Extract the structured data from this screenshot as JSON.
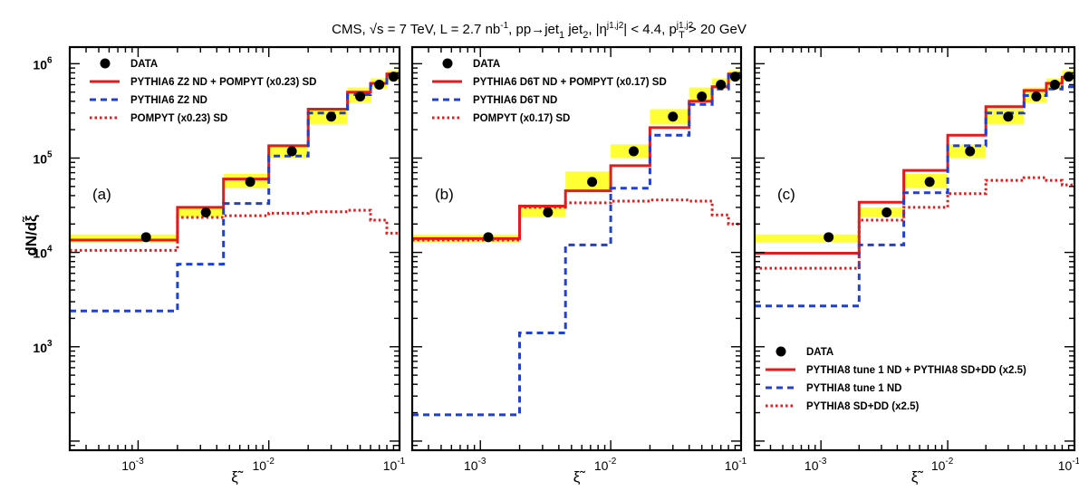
{
  "header": {
    "segments": [
      "CMS,",
      "√s = 7 TeV,",
      "L = 2.7 nb",
      "-1",
      ",",
      "pp→jet",
      "1",
      "jet",
      "2",
      ",",
      "|η",
      "j1,j2",
      "| < 4.4,",
      "p",
      "j1,j2",
      "T",
      "> 20 GeV"
    ]
  },
  "chart_data": [
    {
      "type": "step-line",
      "panel_label": "(a)",
      "xlabel": "ξ̃",
      "ylabel": "dN/dξ̃",
      "xscale": "log",
      "yscale": "log",
      "xlim": [
        0.0003,
        0.1
      ],
      "ylim": [
        80,
        1500000
      ],
      "x_ticks": [
        {
          "base": "10",
          "exp": "-3",
          "value": 0.001
        },
        {
          "base": "10",
          "exp": "-2",
          "value": 0.01
        },
        {
          "base": "10",
          "exp": "-1",
          "value": 0.1
        }
      ],
      "y_ticks": [
        {
          "base": "10",
          "exp": "3",
          "value": 1000
        },
        {
          "base": "10",
          "exp": "4",
          "value": 10000
        },
        {
          "base": "10",
          "exp": "5",
          "value": 100000
        },
        {
          "base": "10",
          "exp": "6",
          "value": 1000000
        }
      ],
      "show_y_labels": true,
      "legend_position": "top-left",
      "bin_edges": [
        0.0003,
        0.002,
        0.0045,
        0.01,
        0.02,
        0.04,
        0.06,
        0.08,
        0.1
      ],
      "data": {
        "name": "DATA",
        "x": [
          0.00115,
          0.0033,
          0.0072,
          0.015,
          0.03,
          0.05,
          0.07,
          0.09
        ],
        "y": [
          14500,
          26500,
          56000,
          118000,
          275000,
          450000,
          600000,
          730000
        ],
        "band_low": [
          12800,
          24000,
          48000,
          100000,
          230000,
          390000,
          540000,
          650000
        ],
        "band_high": [
          15500,
          30000,
          68000,
          140000,
          330000,
          560000,
          700000,
          850000
        ]
      },
      "series": [
        {
          "name": "PYTHIA6 Z2 ND + POMPYT (x0.23) SD",
          "style": "solid",
          "color": "#e41a1c",
          "values": [
            13500,
            30000,
            60000,
            135000,
            330000,
            500000,
            620000,
            780000
          ]
        },
        {
          "name": "PYTHIA6 Z2 ND",
          "style": "dashed",
          "color": "#1f3fd9",
          "values": [
            2400,
            7500,
            33000,
            105000,
            300000,
            470000,
            590000,
            760000
          ]
        },
        {
          "name": "POMPYT (x0.23) SD",
          "style": "dotted",
          "color": "#e41a1c",
          "values": [
            10500,
            23500,
            24500,
            26000,
            27000,
            28000,
            22000,
            16000
          ]
        }
      ],
      "band_color": "#ffff33"
    },
    {
      "type": "step-line",
      "panel_label": "(b)",
      "xlabel": "ξ̃",
      "ylabel": "",
      "xscale": "log",
      "yscale": "log",
      "xlim": [
        0.0003,
        0.1
      ],
      "ylim": [
        80,
        1500000
      ],
      "x_ticks": [
        {
          "base": "10",
          "exp": "-3",
          "value": 0.001
        },
        {
          "base": "10",
          "exp": "-2",
          "value": 0.01
        },
        {
          "base": "10",
          "exp": "-1",
          "value": 0.1
        }
      ],
      "y_ticks": [
        {
          "base": "10",
          "exp": "3",
          "value": 1000
        },
        {
          "base": "10",
          "exp": "4",
          "value": 10000
        },
        {
          "base": "10",
          "exp": "5",
          "value": 100000
        },
        {
          "base": "10",
          "exp": "6",
          "value": 1000000
        }
      ],
      "show_y_labels": false,
      "legend_position": "top-left",
      "bin_edges": [
        0.0003,
        0.002,
        0.0045,
        0.01,
        0.02,
        0.04,
        0.06,
        0.08,
        0.1
      ],
      "data": {
        "name": "DATA",
        "x": [
          0.00115,
          0.0033,
          0.0072,
          0.015,
          0.03,
          0.05,
          0.07,
          0.09
        ],
        "y": [
          14500,
          26500,
          56000,
          118000,
          275000,
          450000,
          600000,
          730000
        ],
        "band_low": [
          12800,
          24000,
          44000,
          100000,
          230000,
          390000,
          540000,
          650000
        ],
        "band_high": [
          15500,
          30000,
          72000,
          140000,
          330000,
          560000,
          700000,
          850000
        ]
      },
      "series": [
        {
          "name": "PYTHIA6 D6T ND + POMPYT (x0.17) SD",
          "style": "solid",
          "color": "#e41a1c",
          "values": [
            14000,
            31000,
            45000,
            83000,
            210000,
            400000,
            570000,
            780000
          ]
        },
        {
          "name": "PYTHIA6 D6T ND",
          "style": "dashed",
          "color": "#1f3fd9",
          "values": [
            190,
            1400,
            12000,
            48000,
            175000,
            370000,
            540000,
            750000
          ]
        },
        {
          "name": "POMPYT (x0.17) SD",
          "style": "dotted",
          "color": "#e41a1c",
          "values": [
            13500,
            30000,
            33500,
            35000,
            36000,
            35000,
            25000,
            20000
          ]
        }
      ],
      "band_color": "#ffff33"
    },
    {
      "type": "step-line",
      "panel_label": "(c)",
      "xlabel": "ξ̃",
      "ylabel": "",
      "xscale": "log",
      "yscale": "log",
      "xlim": [
        0.0003,
        0.1
      ],
      "ylim": [
        80,
        1500000
      ],
      "x_ticks": [
        {
          "base": "10",
          "exp": "-3",
          "value": 0.001
        },
        {
          "base": "10",
          "exp": "-2",
          "value": 0.01
        },
        {
          "base": "10",
          "exp": "-1",
          "value": 0.1
        }
      ],
      "y_ticks": [
        {
          "base": "10",
          "exp": "3",
          "value": 1000
        },
        {
          "base": "10",
          "exp": "4",
          "value": 10000
        },
        {
          "base": "10",
          "exp": "5",
          "value": 100000
        },
        {
          "base": "10",
          "exp": "6",
          "value": 1000000
        }
      ],
      "show_y_labels": false,
      "legend_position": "bottom-right",
      "bin_edges": [
        0.0003,
        0.002,
        0.0045,
        0.01,
        0.02,
        0.04,
        0.06,
        0.08,
        0.1
      ],
      "data": {
        "name": "DATA",
        "x": [
          0.00115,
          0.0033,
          0.0072,
          0.015,
          0.03,
          0.05,
          0.07,
          0.09
        ],
        "y": [
          14500,
          26500,
          56000,
          118000,
          275000,
          450000,
          600000,
          730000
        ],
        "band_low": [
          12800,
          24000,
          48000,
          100000,
          230000,
          390000,
          540000,
          650000
        ],
        "band_high": [
          15500,
          30000,
          68000,
          140000,
          330000,
          560000,
          700000,
          850000
        ]
      },
      "series": [
        {
          "name": "PYTHIA8 tune 1 ND + PYTHIA8 SD+DD (x2.5)",
          "style": "solid",
          "color": "#e41a1c",
          "values": [
            9800,
            34000,
            74000,
            175000,
            350000,
            520000,
            620000,
            720000
          ]
        },
        {
          "name": "PYTHIA8 tune 1 ND",
          "style": "dashed",
          "color": "#1f3fd9",
          "values": [
            2700,
            12000,
            43000,
            135000,
            300000,
            460000,
            540000,
            570000
          ]
        },
        {
          "name": "PYTHIA8 SD+DD (x2.5)",
          "style": "dotted",
          "color": "#e41a1c",
          "values": [
            6800,
            22000,
            30000,
            42000,
            58000,
            62000,
            58000,
            52000
          ]
        }
      ],
      "band_color": "#ffff33"
    }
  ]
}
